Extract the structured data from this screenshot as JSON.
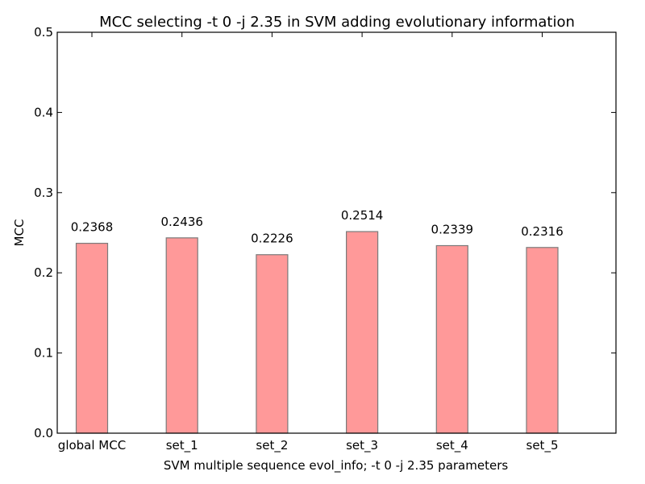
{
  "chart_data": {
    "type": "bar",
    "title": "MCC selecting -t 0 -j 2.35 in SVM adding evolutionary information",
    "xlabel": "SVM multiple sequence evol_info; -t 0 -j 2.35 parameters",
    "ylabel": "MCC",
    "categories": [
      "global MCC",
      "set_1",
      "set_2",
      "set_3",
      "set_4",
      "set_5"
    ],
    "values": [
      0.2368,
      0.2436,
      0.2226,
      0.2514,
      0.2339,
      0.2316
    ],
    "data_labels": [
      "0.2368",
      "0.2436",
      "0.2226",
      "0.2514",
      "0.2339",
      "0.2316"
    ],
    "ylim": [
      0,
      0.5
    ],
    "yticks": [
      0.0,
      0.1,
      0.2,
      0.3,
      0.4,
      0.5
    ],
    "ytick_labels": [
      "0.0",
      "0.1",
      "0.2",
      "0.3",
      "0.4",
      "0.5"
    ],
    "grid": false,
    "bar_color": "#ff9999",
    "bar_edge_color": "#7a7a7a"
  }
}
